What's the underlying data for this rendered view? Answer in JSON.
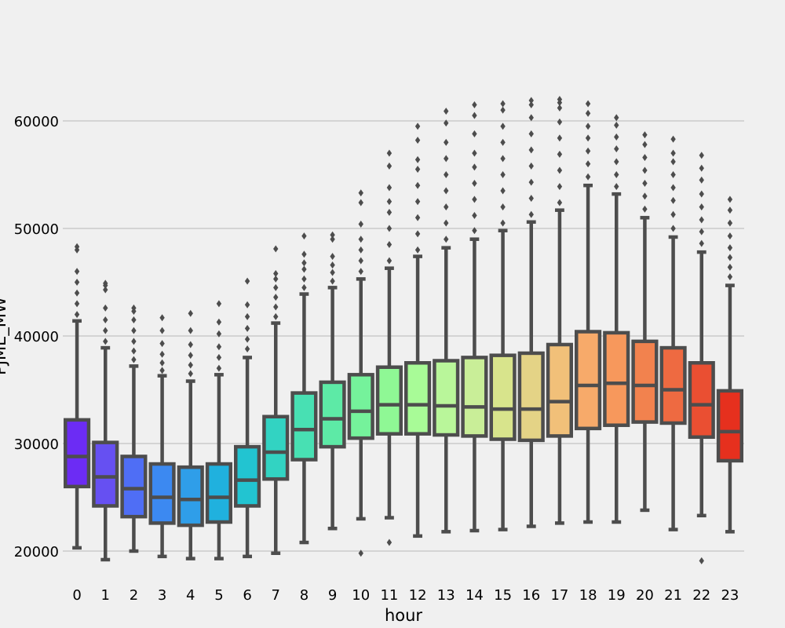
{
  "chart_data": {
    "type": "box",
    "xlabel": "hour",
    "ylabel": "PJME_MW",
    "ylim": [
      17700,
      64000
    ],
    "yticks": [
      20000,
      30000,
      40000,
      50000,
      60000
    ],
    "ytick_labels": [
      "20000",
      "30000",
      "40000",
      "50000",
      "60000"
    ],
    "grid": true,
    "categories": [
      "0",
      "1",
      "2",
      "3",
      "4",
      "5",
      "6",
      "7",
      "8",
      "9",
      "10",
      "11",
      "12",
      "13",
      "14",
      "15",
      "16",
      "17",
      "18",
      "19",
      "20",
      "21",
      "22",
      "23"
    ],
    "colors": [
      "#6c2cf4",
      "#6650f2",
      "#4f6ef5",
      "#3c89f1",
      "#2f9ee9",
      "#20b1de",
      "#22c4d1",
      "#32d3c2",
      "#48e0b3",
      "#5deaa6",
      "#75f29b",
      "#8ff895",
      "#a8fb97",
      "#b9f69a",
      "#c9ee98",
      "#d8e48c",
      "#e4d386",
      "#f1c079",
      "#f7aa6a",
      "#f7985c",
      "#f2824e",
      "#ee6a41",
      "#ea4f32",
      "#e6301e"
    ],
    "boxes": [
      {
        "whisker_low": 20300,
        "q1": 26000,
        "median": 28800,
        "q3": 32200,
        "whisker_high": 41400,
        "outliers": [
          42000,
          43000,
          44000,
          45000,
          46000,
          48000,
          48300
        ]
      },
      {
        "whisker_low": 19200,
        "q1": 24200,
        "median": 26900,
        "q3": 30100,
        "whisker_high": 38900,
        "outliers": [
          39500,
          40500,
          41500,
          42600,
          44300,
          44700,
          44900
        ]
      },
      {
        "whisker_low": 20000,
        "q1": 23200,
        "median": 25800,
        "q3": 28800,
        "whisker_high": 37200,
        "outliers": [
          37800,
          38600,
          39500,
          40500,
          41500,
          42300,
          42600
        ]
      },
      {
        "whisker_low": 19500,
        "q1": 22600,
        "median": 25000,
        "q3": 28100,
        "whisker_high": 36300,
        "outliers": [
          36800,
          37500,
          38300,
          39300,
          40500,
          41700
        ]
      },
      {
        "whisker_low": 19300,
        "q1": 22400,
        "median": 24800,
        "q3": 27800,
        "whisker_high": 35800,
        "outliers": [
          36500,
          37300,
          38200,
          39200,
          40500,
          42100
        ]
      },
      {
        "whisker_low": 19300,
        "q1": 22700,
        "median": 25000,
        "q3": 28100,
        "whisker_high": 36400,
        "outliers": [
          37000,
          38000,
          39000,
          40200,
          41300,
          43000
        ]
      },
      {
        "whisker_low": 19500,
        "q1": 24200,
        "median": 26600,
        "q3": 29700,
        "whisker_high": 38000,
        "outliers": [
          38800,
          39700,
          40700,
          41800,
          42900,
          45100
        ]
      },
      {
        "whisker_low": 19800,
        "q1": 26700,
        "median": 29200,
        "q3": 32500,
        "whisker_high": 41200,
        "outliers": [
          41800,
          42700,
          43600,
          44500,
          45300,
          45800,
          48100
        ]
      },
      {
        "whisker_low": 20800,
        "q1": 28500,
        "median": 31300,
        "q3": 34700,
        "whisker_high": 43900,
        "outliers": [
          44500,
          45300,
          46200,
          46800,
          47600,
          49300
        ]
      },
      {
        "whisker_low": 22100,
        "q1": 29700,
        "median": 32300,
        "q3": 35700,
        "whisker_high": 44500,
        "outliers": [
          45100,
          45900,
          46600,
          47400,
          49000,
          49400
        ]
      },
      {
        "whisker_low": 23000,
        "q1": 30500,
        "median": 33000,
        "q3": 36400,
        "whisker_high": 45300,
        "outliers": [
          19800,
          46000,
          47000,
          48000,
          49000,
          50400,
          52400,
          53300
        ]
      },
      {
        "whisker_low": 23100,
        "q1": 30900,
        "median": 33600,
        "q3": 37100,
        "whisker_high": 46300,
        "outliers": [
          20800,
          47000,
          48500,
          50000,
          51500,
          52500,
          53800,
          55800,
          57000
        ]
      },
      {
        "whisker_low": 21400,
        "q1": 30900,
        "median": 33600,
        "q3": 37500,
        "whisker_high": 47400,
        "outliers": [
          48000,
          49500,
          51000,
          52500,
          54000,
          55500,
          56400,
          58200,
          59500
        ]
      },
      {
        "whisker_low": 21800,
        "q1": 30800,
        "median": 33500,
        "q3": 37700,
        "whisker_high": 48200,
        "outliers": [
          49000,
          50500,
          52000,
          53500,
          55000,
          56500,
          58000,
          59800,
          60900
        ]
      },
      {
        "whisker_low": 21900,
        "q1": 30700,
        "median": 33400,
        "q3": 38000,
        "whisker_high": 49000,
        "outliers": [
          49800,
          51200,
          52700,
          54200,
          55700,
          57000,
          58800,
          60500,
          61500
        ]
      },
      {
        "whisker_low": 22000,
        "q1": 30400,
        "median": 33200,
        "q3": 38200,
        "whisker_high": 49800,
        "outliers": [
          50500,
          52000,
          53500,
          55000,
          56500,
          58000,
          59500,
          61000,
          61600
        ]
      },
      {
        "whisker_low": 22300,
        "q1": 30300,
        "median": 33200,
        "q3": 38400,
        "whisker_high": 50600,
        "outliers": [
          51300,
          52800,
          54300,
          55800,
          57300,
          58800,
          60300,
          61500,
          61900
        ]
      },
      {
        "whisker_low": 22600,
        "q1": 30700,
        "median": 33900,
        "q3": 39200,
        "whisker_high": 51700,
        "outliers": [
          52400,
          53900,
          55400,
          56900,
          58400,
          59900,
          61200,
          61700,
          62000
        ]
      },
      {
        "whisker_low": 22700,
        "q1": 31400,
        "median": 35400,
        "q3": 40400,
        "whisker_high": 54000,
        "outliers": [
          54800,
          56000,
          57200,
          58400,
          59500,
          60700,
          61600
        ]
      },
      {
        "whisker_low": 22700,
        "q1": 31700,
        "median": 35600,
        "q3": 40300,
        "whisker_high": 53200,
        "outliers": [
          53900,
          55000,
          56200,
          57400,
          58500,
          59600,
          60300
        ]
      },
      {
        "whisker_low": 23800,
        "q1": 32000,
        "median": 35400,
        "q3": 39500,
        "whisker_high": 51000,
        "outliers": [
          51800,
          53000,
          54200,
          55400,
          56600,
          57800,
          58700
        ]
      },
      {
        "whisker_low": 22000,
        "q1": 31900,
        "median": 35000,
        "q3": 38900,
        "whisker_high": 49200,
        "outliers": [
          50000,
          51300,
          52600,
          53800,
          55000,
          56200,
          57000,
          58300
        ]
      },
      {
        "whisker_low": 23300,
        "q1": 30600,
        "median": 33600,
        "q3": 37500,
        "whisker_high": 47800,
        "outliers": [
          19100,
          48600,
          49700,
          50800,
          52000,
          53200,
          54500,
          55600,
          56800
        ]
      },
      {
        "whisker_low": 21800,
        "q1": 28400,
        "median": 31100,
        "q3": 34900,
        "whisker_high": 44700,
        "outliers": [
          45500,
          46400,
          47300,
          48200,
          49300,
          50500,
          51700,
          52700
        ]
      }
    ]
  }
}
